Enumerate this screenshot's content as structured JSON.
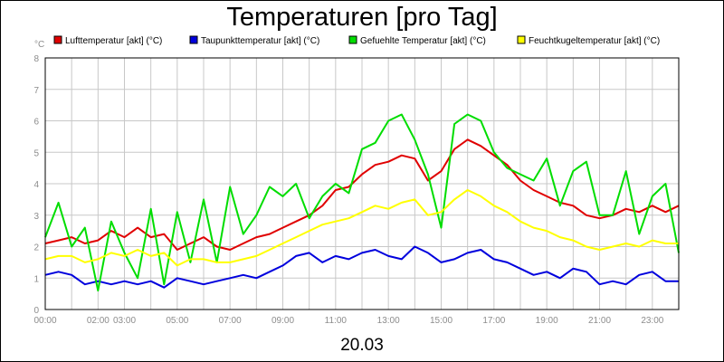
{
  "chart_data": {
    "type": "line",
    "title": "Temperaturen [pro Tag]",
    "ylabel": "°C",
    "xlabel": "20.03",
    "ylim": [
      0,
      8
    ],
    "yticks": [
      "0",
      "1",
      "2",
      "3",
      "4",
      "5",
      "6",
      "7",
      "8"
    ],
    "xlim": [
      0,
      24
    ],
    "xticks": [
      {
        "hour": 0,
        "label": "00:00"
      },
      {
        "hour": 2,
        "label": "02:00"
      },
      {
        "hour": 3,
        "label": "03:00"
      },
      {
        "hour": 5,
        "label": "05:00"
      },
      {
        "hour": 7,
        "label": "07:00"
      },
      {
        "hour": 9,
        "label": "09:00"
      },
      {
        "hour": 11,
        "label": "11:00"
      },
      {
        "hour": 13,
        "label": "13:00"
      },
      {
        "hour": 15,
        "label": "15:00"
      },
      {
        "hour": 17,
        "label": "17:00"
      },
      {
        "hour": 19,
        "label": "19:00"
      },
      {
        "hour": 21,
        "label": "21:00"
      },
      {
        "hour": 23,
        "label": "23:00"
      }
    ],
    "grid": true,
    "legend_position": "top",
    "x": [
      0,
      0.5,
      1,
      1.5,
      2,
      2.5,
      3,
      3.5,
      4,
      4.5,
      5,
      5.5,
      6,
      6.5,
      7,
      7.5,
      8,
      8.5,
      9,
      9.5,
      10,
      10.5,
      11,
      11.5,
      12,
      12.5,
      13,
      13.5,
      14,
      14.5,
      15,
      15.5,
      16,
      16.5,
      17,
      17.5,
      18,
      18.5,
      19,
      19.5,
      20,
      20.5,
      21,
      21.5,
      22,
      22.5,
      23,
      23.5,
      24
    ],
    "series": [
      {
        "name": "Lufttemperatur [akt] (°C)",
        "color": "#e00000",
        "values": [
          2.1,
          2.2,
          2.3,
          2.1,
          2.2,
          2.5,
          2.3,
          2.6,
          2.3,
          2.4,
          1.9,
          2.1,
          2.3,
          2.0,
          1.9,
          2.1,
          2.3,
          2.4,
          2.6,
          2.8,
          3.0,
          3.3,
          3.8,
          3.9,
          4.3,
          4.6,
          4.7,
          4.9,
          4.8,
          4.1,
          4.4,
          5.1,
          5.4,
          5.2,
          4.9,
          4.6,
          4.1,
          3.8,
          3.6,
          3.4,
          3.3,
          3.0,
          2.9,
          3.0,
          3.2,
          3.1,
          3.3,
          3.1,
          3.3
        ]
      },
      {
        "name": "Taupunkttemperatur [akt] (°C)",
        "color": "#0000dd",
        "values": [
          1.1,
          1.2,
          1.1,
          0.8,
          0.9,
          0.8,
          0.9,
          0.8,
          0.9,
          0.7,
          1.0,
          0.9,
          0.8,
          0.9,
          1.0,
          1.1,
          1.0,
          1.2,
          1.4,
          1.7,
          1.8,
          1.5,
          1.7,
          1.6,
          1.8,
          1.9,
          1.7,
          1.6,
          2.0,
          1.8,
          1.5,
          1.6,
          1.8,
          1.9,
          1.6,
          1.5,
          1.3,
          1.1,
          1.2,
          1.0,
          1.3,
          1.2,
          0.8,
          0.9,
          0.8,
          1.1,
          1.2,
          0.9,
          0.9
        ]
      },
      {
        "name": "Gefuehlte Temperatur [akt] (°C)",
        "color": "#00dd00",
        "values": [
          2.3,
          3.4,
          2.0,
          2.6,
          0.6,
          2.8,
          1.8,
          1.0,
          3.2,
          0.8,
          3.1,
          1.5,
          3.5,
          1.5,
          3.9,
          2.4,
          3.0,
          3.9,
          3.6,
          4.0,
          2.9,
          3.6,
          4.0,
          3.7,
          5.1,
          5.3,
          6.0,
          6.2,
          5.4,
          4.3,
          2.6,
          5.9,
          6.2,
          6.0,
          5.0,
          4.5,
          4.3,
          4.1,
          4.8,
          3.3,
          4.4,
          4.7,
          3.0,
          3.0,
          4.4,
          2.4,
          3.6,
          4.0,
          1.8
        ]
      },
      {
        "name": "Feuchtkugeltemperatur [akt] (°C)",
        "color": "#ffff00",
        "values": [
          1.6,
          1.7,
          1.7,
          1.5,
          1.6,
          1.8,
          1.7,
          1.9,
          1.7,
          1.8,
          1.4,
          1.6,
          1.6,
          1.5,
          1.5,
          1.6,
          1.7,
          1.9,
          2.1,
          2.3,
          2.5,
          2.7,
          2.8,
          2.9,
          3.1,
          3.3,
          3.2,
          3.4,
          3.5,
          3.0,
          3.1,
          3.5,
          3.8,
          3.6,
          3.3,
          3.1,
          2.8,
          2.6,
          2.5,
          2.3,
          2.2,
          2.0,
          1.9,
          2.0,
          2.1,
          2.0,
          2.2,
          2.1,
          2.1
        ]
      }
    ]
  }
}
